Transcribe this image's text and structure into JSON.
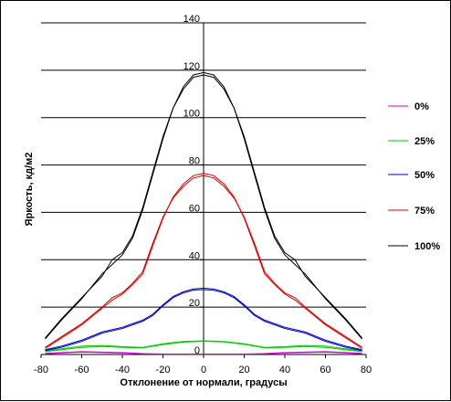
{
  "chart_data": {
    "type": "line",
    "title": "",
    "xlabel": "Отклонение от нормали, градусы",
    "ylabel": "Яркость, кд/м2",
    "xlim": [
      -80,
      80
    ],
    "ylim": [
      0,
      140
    ],
    "x_ticks": [
      "-80",
      "-60",
      "-40",
      "-20",
      "0",
      "20",
      "40",
      "60",
      "80"
    ],
    "y_ticks": [
      "0",
      "20",
      "40",
      "60",
      "80",
      "100",
      "120",
      "140"
    ],
    "grid": "horizontal",
    "legend_position": "right",
    "series": [
      {
        "name": "0%",
        "color": "#cc00cc",
        "x": [
          -78,
          -60,
          -40,
          -30,
          -20,
          20,
          30,
          40,
          60,
          78
        ],
        "values": [
          0.5,
          1.2,
          0.8,
          0.4,
          0.2,
          0.2,
          0.4,
          0.8,
          1.2,
          0.5
        ],
        "x2": [
          -78,
          -60,
          -40,
          -30,
          -20,
          20,
          30,
          40,
          60,
          78
        ],
        "values2": [
          0.3,
          1.0,
          0.6,
          0.3,
          0.1,
          0.1,
          0.3,
          0.6,
          1.0,
          0.3
        ]
      },
      {
        "name": "25%",
        "color": "#00cc00",
        "x": [
          -78,
          -60,
          -50,
          -40,
          -30,
          -20,
          -10,
          0,
          10,
          20,
          30,
          40,
          50,
          60,
          78
        ],
        "values": [
          1.5,
          3.5,
          3.8,
          3.3,
          3.0,
          4.5,
          5.5,
          5.8,
          5.5,
          4.5,
          3.0,
          3.3,
          3.8,
          3.5,
          1.5
        ],
        "x2": [
          -78,
          -60,
          -50,
          -40,
          -30,
          -20,
          -10,
          0,
          10,
          20,
          30,
          40,
          50,
          60,
          78
        ],
        "values2": [
          1.2,
          3.0,
          3.4,
          3.0,
          2.8,
          4.2,
          5.2,
          5.6,
          5.3,
          4.3,
          2.8,
          3.0,
          3.4,
          3.0,
          1.2
        ]
      },
      {
        "name": "50%",
        "color": "#0000cc",
        "x": [
          -78,
          -70,
          -60,
          -50,
          -40,
          -30,
          -25,
          -20,
          -15,
          -10,
          -5,
          0,
          5,
          10,
          15,
          20,
          25,
          30,
          40,
          50,
          60,
          70,
          78
        ],
        "values": [
          2,
          3.5,
          6,
          9.5,
          11.5,
          14.5,
          17,
          21,
          24.5,
          26.5,
          27.7,
          28,
          27.6,
          26.5,
          24.5,
          21,
          17,
          14.5,
          11.5,
          9.5,
          6,
          3.5,
          2
        ],
        "x2": [
          -78,
          -70,
          -60,
          -50,
          -40,
          -30,
          -25,
          -20,
          -15,
          -10,
          -5,
          0,
          5,
          10,
          15,
          20,
          25,
          30,
          40,
          50,
          60,
          70,
          78
        ],
        "values2": [
          1.7,
          3.0,
          5.5,
          9.0,
          11.0,
          14.0,
          16.5,
          20.5,
          24,
          26,
          27.2,
          27.4,
          27.1,
          26,
          24,
          20.5,
          16.5,
          14,
          11,
          9,
          5.5,
          3.0,
          1.7
        ]
      },
      {
        "name": "75%",
        "color": "#dd0000",
        "x": [
          -78,
          -70,
          -60,
          -50,
          -45,
          -40,
          -35,
          -30,
          -25,
          -20,
          -15,
          -10,
          -5,
          0,
          5,
          10,
          15,
          20,
          25,
          30,
          35,
          40,
          45,
          50,
          60,
          70,
          78
        ],
        "values": [
          3,
          7.5,
          13,
          20,
          24,
          26,
          30,
          35,
          47,
          58,
          66,
          71,
          74.5,
          75.5,
          74.5,
          71,
          66,
          58,
          47,
          35,
          30,
          26,
          24,
          20,
          13,
          7.5,
          3
        ],
        "x2": [
          -78,
          -70,
          -60,
          -50,
          -45,
          -40,
          -35,
          -30,
          -25,
          -20,
          -15,
          -10,
          -5,
          0,
          5,
          10,
          15,
          20,
          25,
          30,
          35,
          40,
          45,
          50,
          60,
          70,
          78
        ],
        "values2": [
          2.5,
          7.0,
          12.5,
          19.5,
          23,
          25.5,
          29.5,
          34,
          46,
          57.5,
          66.5,
          72,
          75.5,
          76.5,
          75.5,
          72,
          66.5,
          57.5,
          46,
          34,
          29.5,
          25.5,
          23,
          19.5,
          12.5,
          7.0,
          2.5
        ]
      },
      {
        "name": "100%",
        "color": "#000000",
        "x": [
          -78,
          -70,
          -60,
          -50,
          -45,
          -40,
          -35,
          -30,
          -25,
          -20,
          -15,
          -10,
          -5,
          0,
          5,
          10,
          15,
          20,
          25,
          30,
          35,
          40,
          45,
          50,
          60,
          70,
          78
        ],
        "values": [
          7,
          15,
          24,
          33,
          40,
          43,
          50,
          62,
          77,
          92,
          104,
          112,
          117,
          118,
          117,
          112,
          104,
          92,
          77,
          62,
          50,
          43,
          40,
          33,
          24,
          15,
          7
        ],
        "x2": [
          -78,
          -70,
          -60,
          -50,
          -45,
          -40,
          -35,
          -30,
          -25,
          -20,
          -15,
          -10,
          -5,
          0,
          5,
          10,
          15,
          20,
          25,
          30,
          35,
          40,
          45,
          50,
          60,
          70,
          78
        ],
        "values2": [
          6.5,
          14.5,
          23.5,
          34,
          38,
          42,
          49,
          61,
          76,
          91,
          104,
          113,
          118,
          119,
          118,
          113,
          104,
          91,
          76,
          61,
          49,
          42,
          38,
          34,
          23.5,
          14.5,
          6.5
        ]
      }
    ]
  }
}
